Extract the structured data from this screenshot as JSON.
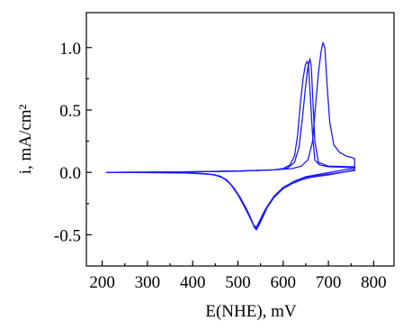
{
  "chart_data": {
    "type": "line",
    "title": "",
    "xlabel": "E(NHE), mV",
    "ylabel": "i, mA/cm²",
    "xlim": [
      165,
      845
    ],
    "ylim": [
      -0.75,
      1.28
    ],
    "x_ticks": [
      200,
      300,
      400,
      500,
      600,
      700,
      800
    ],
    "x_tick_labels": [
      "200",
      "300",
      "400",
      "500",
      "600",
      "700",
      "800"
    ],
    "y_ticks": [
      -0.5,
      0.0,
      0.5,
      1.0
    ],
    "y_tick_labels": [
      "-0.5",
      "0.0",
      "0.5",
      "1.0"
    ],
    "grid": false,
    "legend": "none",
    "series_color": "#1a1aff",
    "series": [
      {
        "values": [
          [
            210,
            0.0
          ],
          [
            300,
            0.0
          ],
          [
            400,
            0.005
          ],
          [
            480,
            0.01
          ],
          [
            540,
            0.015
          ],
          [
            580,
            0.02
          ],
          [
            600,
            0.03
          ],
          [
            615,
            0.06
          ],
          [
            625,
            0.13
          ],
          [
            632,
            0.3
          ],
          [
            638,
            0.55
          ],
          [
            644,
            0.75
          ],
          [
            649,
            0.86
          ],
          [
            653,
            0.89
          ],
          [
            656,
            0.86
          ],
          [
            660,
            0.6
          ],
          [
            665,
            0.3
          ],
          [
            670,
            0.1
          ],
          [
            680,
            0.06
          ],
          [
            700,
            0.045
          ],
          [
            740,
            0.04
          ],
          [
            758,
            0.04
          ],
          [
            758,
            0.02
          ],
          [
            730,
            0.0
          ],
          [
            700,
            -0.02
          ],
          [
            660,
            -0.04
          ],
          [
            640,
            -0.06
          ],
          [
            620,
            -0.09
          ],
          [
            600,
            -0.13
          ],
          [
            580,
            -0.2
          ],
          [
            565,
            -0.28
          ],
          [
            555,
            -0.36
          ],
          [
            547,
            -0.42
          ],
          [
            541,
            -0.46
          ],
          [
            536,
            -0.44
          ],
          [
            530,
            -0.38
          ],
          [
            520,
            -0.3
          ],
          [
            505,
            -0.2
          ],
          [
            490,
            -0.12
          ],
          [
            475,
            -0.06
          ],
          [
            460,
            -0.03
          ],
          [
            440,
            -0.015
          ],
          [
            400,
            -0.005
          ],
          [
            300,
            0.0
          ],
          [
            210,
            0.0
          ]
        ]
      },
      {
        "values": [
          [
            210,
            0.0
          ],
          [
            400,
            0.005
          ],
          [
            500,
            0.01
          ],
          [
            580,
            0.02
          ],
          [
            610,
            0.035
          ],
          [
            625,
            0.08
          ],
          [
            635,
            0.2
          ],
          [
            643,
            0.45
          ],
          [
            650,
            0.7
          ],
          [
            655,
            0.85
          ],
          [
            659,
            0.91
          ],
          [
            662,
            0.85
          ],
          [
            666,
            0.55
          ],
          [
            670,
            0.25
          ],
          [
            678,
            0.08
          ],
          [
            700,
            0.05
          ],
          [
            758,
            0.045
          ],
          [
            758,
            0.015
          ],
          [
            700,
            -0.015
          ],
          [
            650,
            -0.04
          ],
          [
            620,
            -0.08
          ],
          [
            595,
            -0.14
          ],
          [
            575,
            -0.22
          ],
          [
            560,
            -0.3
          ],
          [
            550,
            -0.38
          ],
          [
            543,
            -0.44
          ],
          [
            538,
            -0.45
          ],
          [
            532,
            -0.4
          ],
          [
            522,
            -0.32
          ],
          [
            507,
            -0.22
          ],
          [
            492,
            -0.13
          ],
          [
            478,
            -0.07
          ],
          [
            462,
            -0.035
          ],
          [
            440,
            -0.015
          ],
          [
            380,
            -0.004
          ],
          [
            210,
            0.0
          ]
        ]
      },
      {
        "values": [
          [
            210,
            0.0
          ],
          [
            400,
            0.005
          ],
          [
            500,
            0.01
          ],
          [
            580,
            0.02
          ],
          [
            620,
            0.03
          ],
          [
            640,
            0.05
          ],
          [
            655,
            0.1
          ],
          [
            665,
            0.25
          ],
          [
            672,
            0.55
          ],
          [
            678,
            0.8
          ],
          [
            684,
            0.97
          ],
          [
            688,
            1.04
          ],
          [
            692,
            1.0
          ],
          [
            697,
            0.7
          ],
          [
            703,
            0.4
          ],
          [
            712,
            0.22
          ],
          [
            725,
            0.16
          ],
          [
            740,
            0.13
          ],
          [
            752,
            0.12
          ],
          [
            758,
            0.11
          ],
          [
            758,
            0.035
          ],
          [
            720,
            0.01
          ],
          [
            680,
            -0.015
          ],
          [
            650,
            -0.035
          ],
          [
            625,
            -0.07
          ],
          [
            600,
            -0.12
          ],
          [
            580,
            -0.19
          ],
          [
            565,
            -0.27
          ],
          [
            553,
            -0.35
          ],
          [
            545,
            -0.41
          ],
          [
            540,
            -0.44
          ],
          [
            534,
            -0.42
          ],
          [
            526,
            -0.36
          ],
          [
            515,
            -0.28
          ],
          [
            500,
            -0.18
          ],
          [
            485,
            -0.1
          ],
          [
            470,
            -0.05
          ],
          [
            450,
            -0.02
          ],
          [
            420,
            -0.008
          ],
          [
            350,
            -0.002
          ],
          [
            210,
            0.0
          ]
        ]
      }
    ]
  }
}
